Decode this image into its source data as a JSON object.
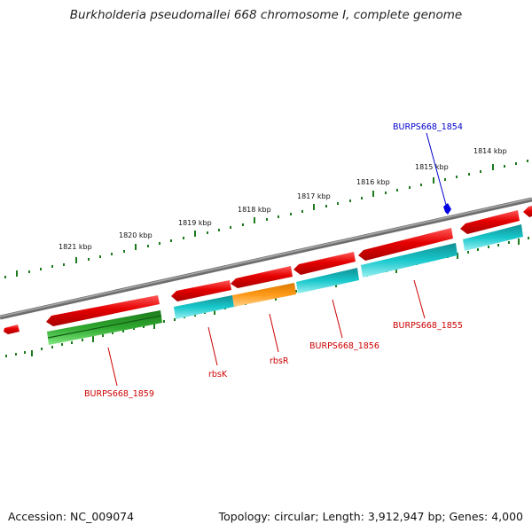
{
  "title": "Burkholderia pseudomallei 668 chromosome I, complete genome",
  "footer": {
    "accession": "Accession: NC_009074",
    "summary": "Topology: circular; Length: 3,912,947 bp; Genes: 4,000"
  },
  "colors": {
    "forward_cds": "#e50000",
    "reverse_cds": "#18c8cc",
    "rrna_like": "#ff9a1a",
    "trna_like": "#3ccc3c",
    "highlight_gene": "#0000e6",
    "label_red": "#cc0000",
    "label_blue": "#0000cc",
    "backbone": "#808080",
    "ruler": "#1e7a1e"
  },
  "ruler_labels": [
    "1821 kbp",
    "1820 kbp",
    "1819 kbp",
    "1818 kbp",
    "1817 kbp",
    "1816 kbp",
    "1815 kbp",
    "1814 kbp"
  ],
  "gene_labels": [
    {
      "text": "BURPS668_1854",
      "color": "label_blue"
    },
    {
      "text": "BURPS668_1855",
      "color": "label_red"
    },
    {
      "text": "BURPS668_1856",
      "color": "label_red"
    },
    {
      "text": "rbsR",
      "color": "label_red"
    },
    {
      "text": "rbsK",
      "color": "label_red"
    },
    {
      "text": "BURPS668_1859",
      "color": "label_red"
    }
  ],
  "legend_note": ""
}
